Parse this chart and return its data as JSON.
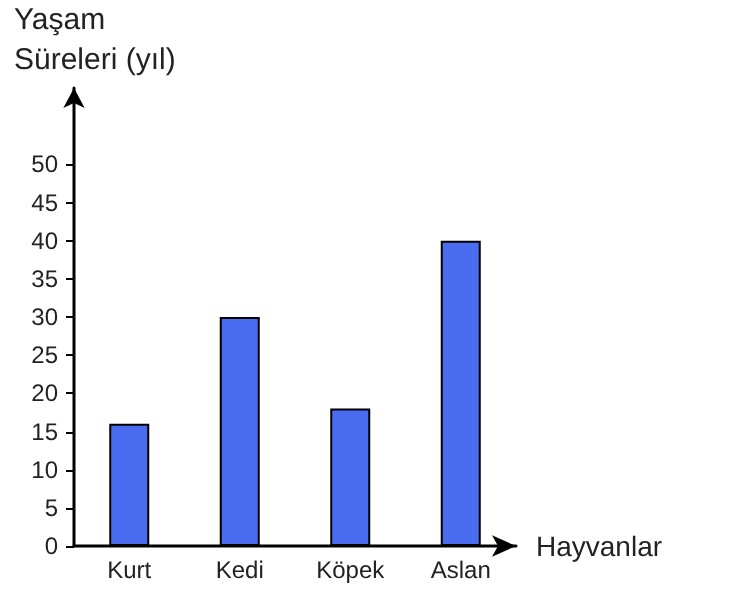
{
  "chart_data": {
    "type": "bar",
    "xlabel": "Hayvanlar",
    "ylabel": "Yaşam\nSüreleri (yıl)",
    "categories": [
      "Kurt",
      "Kedi",
      "Köpek",
      "Aslan"
    ],
    "values": [
      16,
      30,
      18,
      40
    ],
    "color": "#4a6cf0",
    "ylim": [
      0,
      60
    ],
    "yticks": [
      0,
      5,
      10,
      15,
      20,
      25,
      30,
      35,
      40,
      45,
      50
    ],
    "grid": false
  }
}
